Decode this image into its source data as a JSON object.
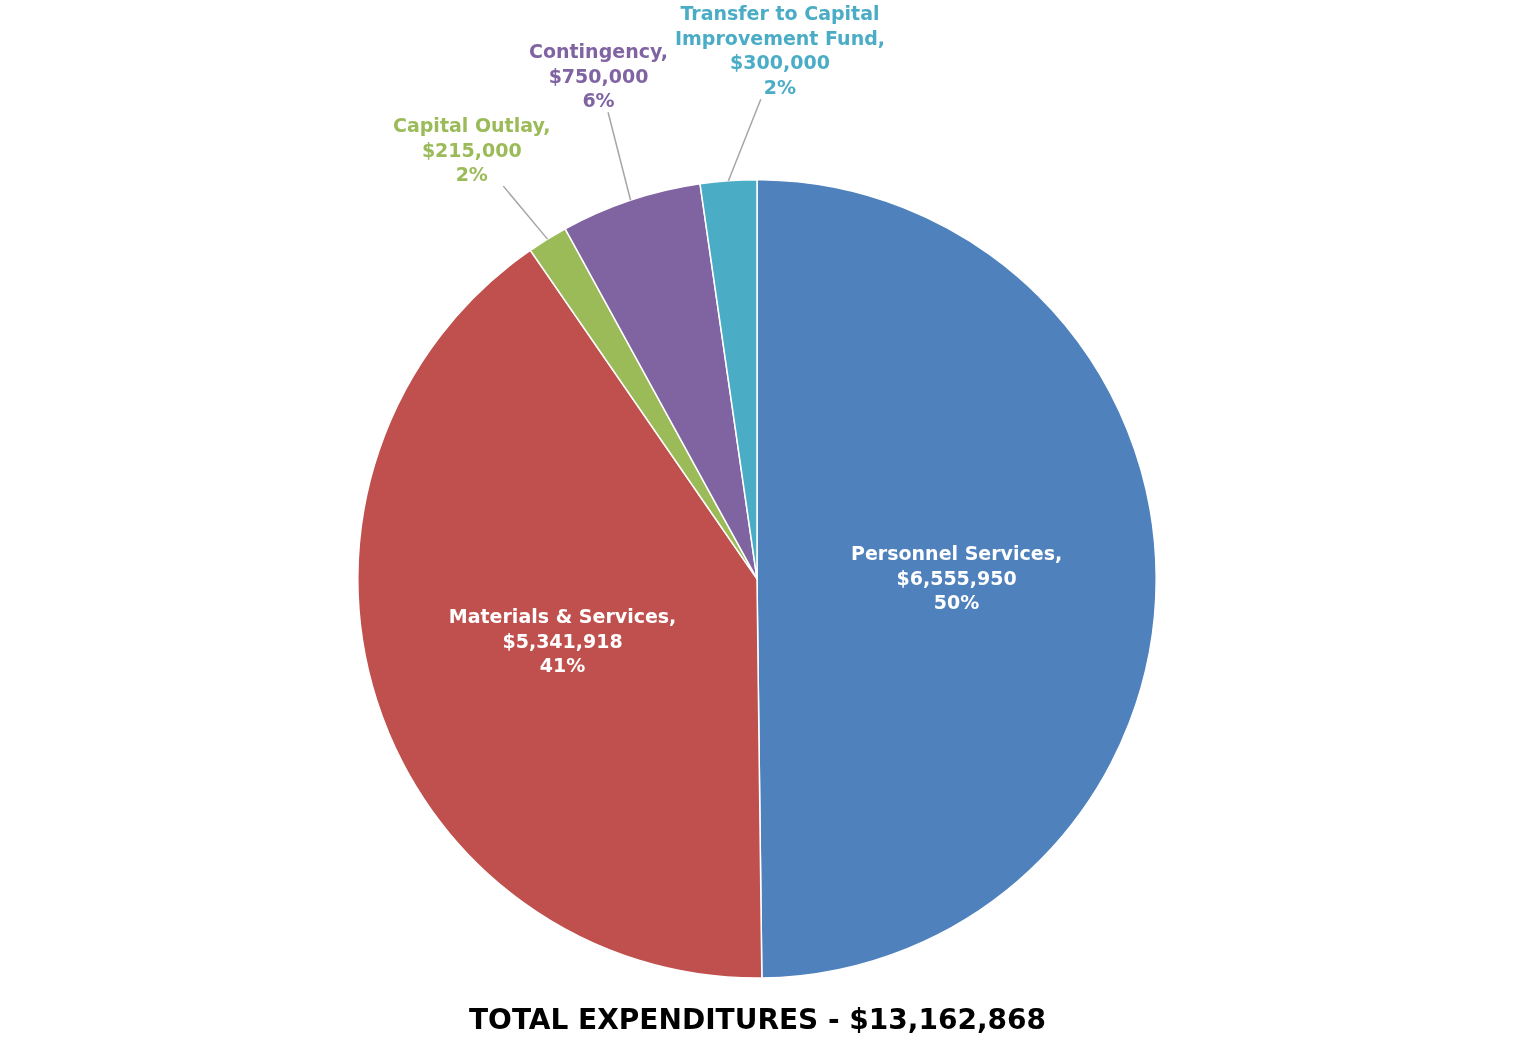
{
  "chart_data": {
    "type": "pie",
    "title": "TOTAL EXPENDITURES - $13,162,868",
    "categories": [
      "Personnel Services",
      "Materials & Services",
      "Capital Outlay",
      "Contingency",
      "Transfer to Capital Improvement Fund"
    ],
    "values": [
      6555950,
      5341918,
      215000,
      750000,
      300000
    ],
    "colors": [
      "#4f81bd",
      "#c0504d",
      "#9bbb59",
      "#8064a2",
      "#4bacc6"
    ],
    "value_labels": [
      ",\n$6,555,950\n50%",
      ",\n$5,341,918\n41%",
      ",\n$215,000\n2%",
      ",\n$750,000\n6%",
      ",\n$300,000\n2%"
    ],
    "legend": false
  }
}
